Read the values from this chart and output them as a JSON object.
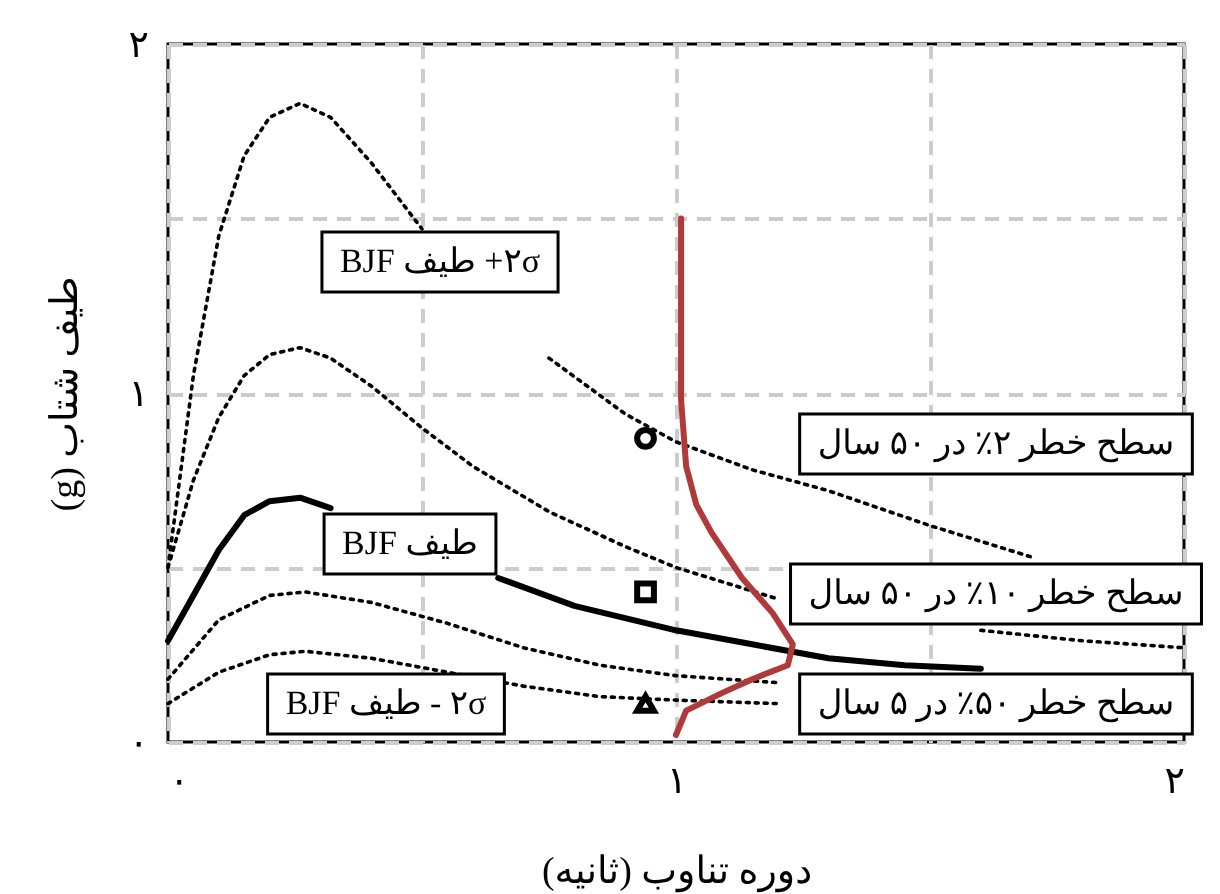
{
  "chart_data": {
    "type": "line",
    "xlabel": "دوره تناوب (ثانیه)",
    "ylabel": "طیف شتاب (g)",
    "xlim": [
      0,
      2
    ],
    "ylim": [
      0,
      2
    ],
    "xticks": [
      {
        "value": 0,
        "label": "۰"
      },
      {
        "value": 0.5,
        "label": null
      },
      {
        "value": 1,
        "label": "۱"
      },
      {
        "value": 1.5,
        "label": null
      },
      {
        "value": 2,
        "label": "۲"
      }
    ],
    "yticks": [
      {
        "value": 0,
        "label": "۰"
      },
      {
        "value": 0.5,
        "label": null
      },
      {
        "value": 1,
        "label": "۱"
      },
      {
        "value": 1.5,
        "label": null
      },
      {
        "value": 2,
        "label": "۲"
      }
    ],
    "grid": true,
    "series": [
      {
        "color": "#000000",
        "line_style": "dotted",
        "x": [
          0,
          0.05,
          0.1,
          0.15,
          0.2,
          0.26,
          0.32,
          0.4,
          0.5,
          0.6,
          0.75,
          0.9,
          1.0,
          1.15,
          1.3,
          1.5,
          1.7
        ],
        "values": [
          0.5,
          1.05,
          1.45,
          1.68,
          1.79,
          1.83,
          1.79,
          1.66,
          1.47,
          null,
          1.1,
          0.94,
          0.86,
          0.78,
          0.72,
          0.62,
          0.53
        ]
      },
      {
        "color": "#000000",
        "line_style": "dotted",
        "x": [
          0,
          0.05,
          0.1,
          0.15,
          0.2,
          0.26,
          0.32,
          0.4,
          0.5,
          0.6,
          0.75,
          0.9,
          1.0,
          1.2,
          1.4,
          1.6,
          1.8,
          2.0
        ],
        "values": [
          0.5,
          0.75,
          0.93,
          1.05,
          1.11,
          1.13,
          1.1,
          1.02,
          0.9,
          0.79,
          0.66,
          0.56,
          0.5,
          0.41,
          null,
          0.32,
          0.29,
          0.27
        ]
      },
      {
        "color": "#000000",
        "line_style": "solid",
        "x": [
          0,
          0.05,
          0.1,
          0.15,
          0.2,
          0.26,
          0.32,
          0.4,
          0.5,
          0.65,
          0.8,
          1.0,
          1.15,
          1.3,
          1.45,
          1.6
        ],
        "values": [
          0.29,
          0.42,
          0.55,
          0.65,
          0.69,
          0.7,
          0.67,
          null,
          null,
          0.47,
          0.39,
          0.32,
          0.28,
          0.24,
          0.22,
          0.21
        ]
      },
      {
        "color": "#000000",
        "line_style": "dotted",
        "x": [
          0,
          0.1,
          0.2,
          0.27,
          0.4,
          0.55,
          0.7,
          0.85,
          1.0,
          1.2
        ],
        "values": [
          0.18,
          0.35,
          0.42,
          0.43,
          0.4,
          0.34,
          0.27,
          0.22,
          0.19,
          0.17
        ]
      },
      {
        "color": "#000000",
        "line_style": "dotted",
        "x": [
          0,
          0.1,
          0.2,
          0.27,
          0.4,
          0.55,
          0.7,
          0.85,
          1.0,
          1.2
        ],
        "values": [
          0.11,
          0.2,
          0.25,
          0.26,
          0.24,
          0.2,
          0.16,
          0.13,
          0.12,
          0.11
        ]
      },
      {
        "color": "#b03a3a",
        "line_style": "solid",
        "x": [
          1.01,
          1.01,
          1.01,
          1.02,
          1.04,
          1.07,
          1.13,
          1.19,
          1.23,
          1.22,
          1.15,
          1.09,
          1.02,
          1.0
        ],
        "values": [
          1.5,
          1.2,
          0.98,
          0.79,
          0.68,
          0.6,
          0.47,
          0.37,
          0.28,
          0.22,
          0.18,
          0.14,
          0.09,
          0.02
        ]
      },
      {
        "type": "scatter",
        "color": "#000000",
        "marker": "circle",
        "x": [
          0.94
        ],
        "values": [
          0.87
        ]
      },
      {
        "type": "scatter",
        "color": "#000000",
        "marker": "square",
        "x": [
          0.94
        ],
        "values": [
          0.43
        ]
      },
      {
        "type": "scatter",
        "color": "#000000",
        "marker": "triangle",
        "x": [
          0.94
        ],
        "values": [
          0.11
        ]
      }
    ],
    "annotations": [
      "۲σ+ طیف BJF",
      "طیف BJF",
      "۲σ - طیف BJF",
      "سطح خطر ۲٪ در ۵۰ سال",
      "سطح خطر ۱۰٪ در ۵۰ سال",
      "سطح خطر ۵۰٪ در ۵ سال"
    ]
  }
}
